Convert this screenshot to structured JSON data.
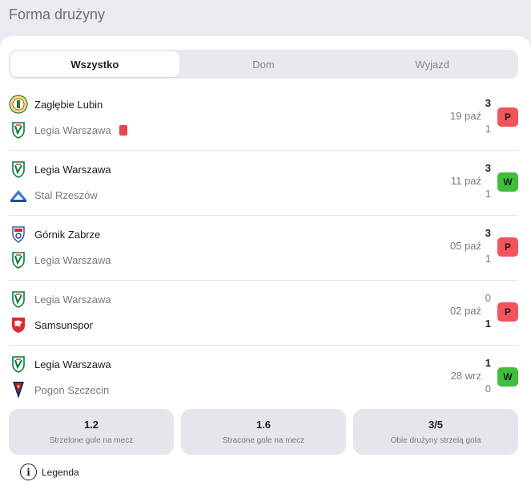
{
  "title": "Forma drużyny",
  "tabs": [
    {
      "label": "Wszystko",
      "active": true
    },
    {
      "label": "Dom",
      "active": false
    },
    {
      "label": "Wyjazd",
      "active": false
    }
  ],
  "matches": [
    {
      "home": {
        "name": "Zagłębie Lubin",
        "crest": "zaglebie-crest",
        "score": "3",
        "winner": true,
        "red_card": false
      },
      "away": {
        "name": "Legia Warszawa",
        "crest": "legia-crest",
        "score": "1",
        "winner": false,
        "red_card": true
      },
      "date": "19 paź",
      "result": "P"
    },
    {
      "home": {
        "name": "Legia Warszawa",
        "crest": "legia-crest",
        "score": "3",
        "winner": true,
        "red_card": false
      },
      "away": {
        "name": "Stal Rzeszów",
        "crest": "stal-crest",
        "score": "1",
        "winner": false,
        "red_card": false
      },
      "date": "11 paź",
      "result": "W"
    },
    {
      "home": {
        "name": "Górnik Zabrze",
        "crest": "gornik-crest",
        "score": "3",
        "winner": true,
        "red_card": false
      },
      "away": {
        "name": "Legia Warszawa",
        "crest": "legia-crest",
        "score": "1",
        "winner": false,
        "red_card": false
      },
      "date": "05 paź",
      "result": "P"
    },
    {
      "home": {
        "name": "Legia Warszawa",
        "crest": "legia-crest",
        "score": "0",
        "winner": false,
        "red_card": false
      },
      "away": {
        "name": "Samsunspor",
        "crest": "samsunspor-crest",
        "score": "1",
        "winner": true,
        "red_card": false
      },
      "date": "02 paź",
      "result": "P"
    },
    {
      "home": {
        "name": "Legia Warszawa",
        "crest": "legia-crest",
        "score": "1",
        "winner": true,
        "red_card": false
      },
      "away": {
        "name": "Pogoń Szczecin",
        "crest": "pogon-crest",
        "score": "0",
        "winner": false,
        "red_card": false
      },
      "date": "28 wrz",
      "result": "W"
    }
  ],
  "stats": [
    {
      "value": "1.2",
      "label": "Strzelone gole na mecz"
    },
    {
      "value": "1.6",
      "label": "Stracone gole na mecz"
    },
    {
      "value": "3/5",
      "label": "Obie drużyny strzelą gola"
    }
  ],
  "legend": {
    "label": "Legenda",
    "icon": "info-icon"
  },
  "colors": {
    "loss": "#f2545b",
    "win": "#3fbe3c",
    "red_card": "#e5454d"
  }
}
